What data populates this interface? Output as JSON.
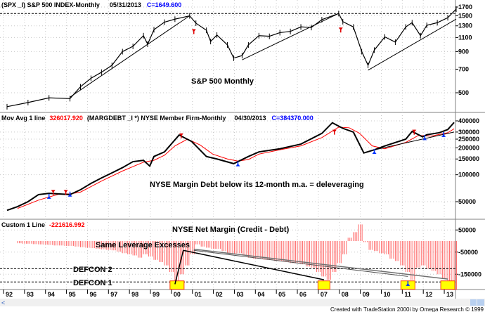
{
  "colors": {
    "price": "#000000",
    "ma": "#ff0000",
    "bars": "#ff6b6b",
    "box": "#ffff00",
    "boxEdge": "#ff4000",
    "accent": "#0000ff",
    "arrowUp": "#0033ff",
    "arrowDown": "#e00000"
  },
  "chart_data": [
    {
      "type": "line",
      "header": {
        "symbol": "(SPX _I) S&P 500 INDEX-Monthly",
        "date": "05/31/2013",
        "close": "C=1649.600"
      },
      "title": "S&P 500 Monthly",
      "yscale": "log",
      "ylim": [
        380,
        1800
      ],
      "yticks": [
        1700,
        1500,
        1300,
        1100,
        900,
        700,
        500
      ],
      "x": [
        1992.0,
        1993.0,
        1994.0,
        1995.0,
        1995.5,
        1996.0,
        1996.5,
        1997.0,
        1997.5,
        1998.0,
        1998.5,
        1998.7,
        1999.0,
        1999.5,
        2000.0,
        2000.7,
        2001.0,
        2001.5,
        2001.7,
        2002.0,
        2002.5,
        2002.8,
        2003.2,
        2003.5,
        2004.0,
        2004.5,
        2005.0,
        2005.5,
        2006.0,
        2006.5,
        2007.0,
        2007.8,
        2008.0,
        2008.5,
        2008.9,
        2009.2,
        2009.5,
        2010.0,
        2010.5,
        2011.0,
        2011.3,
        2011.7,
        2012.0,
        2012.5,
        2013.0,
        2013.4
      ],
      "values": [
        410,
        435,
        465,
        460,
        545,
        615,
        670,
        740,
        900,
        970,
        1130,
        1000,
        1230,
        1370,
        1430,
        1500,
        1350,
        1220,
        1040,
        1140,
        990,
        820,
        850,
        990,
        1130,
        1120,
        1180,
        1200,
        1280,
        1270,
        1420,
        1550,
        1380,
        1280,
        900,
        740,
        920,
        1110,
        1030,
        1280,
        1360,
        1130,
        1310,
        1360,
        1460,
        1650
      ],
      "reference_line": 1550,
      "trendlines": [
        [
          [
            1995.0,
            470
          ],
          [
            2000.7,
            1500
          ]
        ],
        [
          [
            2003.2,
            800
          ],
          [
            2007.8,
            1550
          ]
        ],
        [
          [
            2009.2,
            690
          ],
          [
            2013.4,
            1430
          ]
        ]
      ],
      "down_arrows": [
        [
          2000.9,
          1330
        ],
        [
          2007.9,
          1360
        ]
      ]
    },
    {
      "type": "line",
      "header": {
        "study": "Mov Avg 1 line",
        "study_value": "326017.920",
        "symbol": "(MARGDEBT _I    *) NYSE Member Firm-Monthly",
        "date": "04/30/2013",
        "close": "C=384370.000"
      },
      "annotation": "NYSE Margin Debt below its 12-month m.a. = deleveraging",
      "yscale": "log",
      "ylim": [
        35000,
        450000
      ],
      "yticks": [
        400000,
        300000,
        250000,
        200000,
        150000,
        100000,
        50000
      ],
      "series": [
        {
          "role": "price",
          "x": [
            1992.0,
            1992.5,
            1993.0,
            1993.5,
            1994.0,
            1994.5,
            1995.0,
            1995.5,
            1996.0,
            1996.5,
            1997.0,
            1997.5,
            1998.0,
            1998.5,
            1998.8,
            1999.0,
            1999.5,
            2000.2,
            2000.8,
            2001.5,
            2002.0,
            2002.8,
            2003.5,
            2004.0,
            2005.0,
            2006.0,
            2007.0,
            2007.5,
            2008.0,
            2008.5,
            2009.0,
            2009.5,
            2010.0,
            2011.0,
            2011.3,
            2011.8,
            2012.0,
            2012.6,
            2013.0,
            2013.3
          ],
          "values": [
            40000,
            44000,
            50000,
            60000,
            62000,
            61000,
            60000,
            68000,
            80000,
            92000,
            105000,
            120000,
            140000,
            145000,
            125000,
            160000,
            180000,
            278000,
            235000,
            160000,
            150000,
            133000,
            160000,
            180000,
            195000,
            220000,
            290000,
            381000,
            330000,
            300000,
            175000,
            190000,
            210000,
            250000,
            305000,
            265000,
            280000,
            295000,
            320000,
            384000
          ]
        },
        {
          "role": "moving-average",
          "x": [
            1992.5,
            1993.5,
            1994.5,
            1995.0,
            1995.5,
            1996.5,
            1997.5,
            1998.5,
            1999.0,
            1999.5,
            2000.0,
            2000.6,
            2001.2,
            2001.8,
            2002.5,
            2003.0,
            2003.5,
            2004.0,
            2005.0,
            2006.0,
            2007.0,
            2007.8,
            2008.3,
            2008.8,
            2009.4,
            2010.0,
            2011.0,
            2011.6,
            2012.2,
            2013.0,
            2013.3
          ],
          "values": [
            42000,
            52000,
            61000,
            61000,
            64000,
            85000,
            110000,
            138000,
            145000,
            165000,
            210000,
            250000,
            215000,
            170000,
            150000,
            142000,
            148000,
            170000,
            190000,
            210000,
            260000,
            340000,
            335000,
            290000,
            210000,
            195000,
            230000,
            275000,
            270000,
            295000,
            326000
          ]
        }
      ],
      "down_arrows": [
        [
          1994.2,
          70000
        ],
        [
          1994.8,
          70000
        ],
        [
          2000.3,
          300000
        ],
        [
          2007.6,
          330000
        ],
        [
          2011.4,
          330000
        ]
      ],
      "up_arrows": [
        [
          1994.0,
          52000
        ],
        [
          1995.0,
          55000
        ],
        [
          2003.0,
          120000
        ],
        [
          2009.5,
          165000
        ],
        [
          2011.9,
          235000
        ],
        [
          2012.8,
          255000
        ]
      ],
      "trendlines": [
        [
          [
            2009.3,
            185000
          ],
          [
            2013.3,
            300000
          ]
        ]
      ]
    },
    {
      "type": "bar",
      "header": {
        "study": "Custom 1 Line",
        "study_value": "-221616.992"
      },
      "title": "NYSE Net Margin (Credit - Debt)",
      "ylim": [
        -200000,
        100000
      ],
      "yticks": [
        50000,
        -50000,
        -150000
      ],
      "start": "1992-07",
      "frequency": "quarterly",
      "values": [
        -10000,
        -12000,
        -12000,
        -14000,
        -15000,
        -16000,
        -18000,
        -20000,
        -20000,
        -22000,
        -22000,
        -25000,
        -28000,
        -30000,
        -32000,
        -35000,
        -38000,
        -40000,
        -42000,
        -48000,
        -55000,
        -60000,
        -65000,
        -75000,
        -60000,
        -70000,
        -85000,
        -95000,
        -110000,
        -140000,
        -195000,
        -150000,
        -110000,
        -60000,
        -15000,
        -25000,
        -30000,
        -35000,
        -35000,
        -45000,
        -55000,
        -60000,
        -55000,
        -65000,
        -75000,
        -80000,
        -80000,
        -85000,
        -85000,
        -90000,
        -90000,
        -95000,
        -100000,
        -100000,
        -105000,
        -115000,
        -120000,
        -140000,
        -160000,
        -175000,
        -140000,
        -100000,
        -60000,
        15000,
        40000,
        75000,
        -5000,
        -40000,
        -45000,
        -55000,
        -60000,
        -80000,
        -90000,
        -110000,
        -140000,
        -175000,
        -120000,
        -110000,
        -125000,
        -135000,
        -150000,
        -170000,
        -200000,
        -222000
      ],
      "levels": [
        {
          "label": "DEFCON 2",
          "value": -125000
        },
        {
          "label": "DEFCON 1",
          "value": -185000
        }
      ],
      "annotation": "Same Leverage Excesses",
      "highlights": [
        2000.1,
        2007.1,
        2011.1,
        2013.0
      ],
      "up_arrows": [
        [
          2011.1,
          -190000
        ]
      ]
    }
  ],
  "xaxis": {
    "labels": [
      "92",
      "93",
      "94",
      "95",
      "96",
      "97",
      "98",
      "99",
      "00",
      "01",
      "02",
      "03",
      "04",
      "05",
      "06",
      "07",
      "08",
      "09",
      "10",
      "11",
      "12",
      "13"
    ],
    "start_year": 1992
  },
  "footer": "Created with TradeStation 2000i by Omega Research © 1999"
}
